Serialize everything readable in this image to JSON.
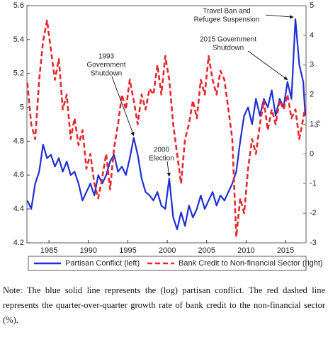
{
  "chart_data": {
    "type": "line",
    "x": [
      1982.25,
      1982.75,
      1983.25,
      1983.75,
      1984.25,
      1984.75,
      1985.25,
      1985.75,
      1986.25,
      1986.75,
      1987.25,
      1987.75,
      1988.25,
      1988.75,
      1989.25,
      1989.75,
      1990.25,
      1990.75,
      1991.25,
      1991.75,
      1992.25,
      1992.75,
      1993.25,
      1993.75,
      1994.25,
      1994.75,
      1995.25,
      1995.75,
      1996.25,
      1996.75,
      1997.25,
      1997.75,
      1998.25,
      1998.75,
      1999.25,
      1999.75,
      2000.25,
      2000.75,
      2001.25,
      2001.75,
      2002.25,
      2002.75,
      2003.25,
      2003.75,
      2004.25,
      2004.75,
      2005.25,
      2005.75,
      2006.25,
      2006.75,
      2007.25,
      2007.75,
      2008.25,
      2008.75,
      2009.25,
      2009.75,
      2010.25,
      2010.75,
      2011.25,
      2011.75,
      2012.25,
      2012.75,
      2013.25,
      2013.75,
      2014.25,
      2014.75,
      2015.25,
      2015.75,
      2016.25,
      2016.75,
      2017.25,
      2017.5
    ],
    "series": [
      {
        "name": "Partisan Conflict (left)",
        "color": "#1f2fd6",
        "dash": false,
        "values": [
          4.45,
          4.4,
          4.55,
          4.62,
          4.78,
          4.7,
          4.72,
          4.65,
          4.7,
          4.62,
          4.68,
          4.6,
          4.62,
          4.55,
          4.45,
          4.5,
          4.55,
          4.48,
          4.6,
          4.55,
          4.6,
          4.68,
          4.72,
          4.62,
          4.65,
          4.6,
          4.7,
          4.82,
          4.72,
          4.58,
          4.5,
          4.48,
          4.45,
          4.5,
          4.42,
          4.4,
          4.58,
          4.35,
          4.28,
          4.38,
          4.3,
          4.42,
          4.35,
          4.4,
          4.48,
          4.4,
          4.45,
          4.5,
          4.42,
          4.48,
          4.45,
          4.5,
          4.55,
          4.62,
          4.8,
          4.95,
          5.0,
          4.9,
          5.05,
          4.95,
          5.05,
          5.0,
          5.1,
          4.95,
          5.05,
          5.0,
          5.15,
          5.05,
          5.52,
          5.25,
          5.15,
          4.95
        ]
      },
      {
        "name": "Bank Credit to Non-financial Sector (right)",
        "color": "#e8262c",
        "dash": true,
        "axis": "y2",
        "values": [
          2.4,
          1.0,
          0.5,
          2.5,
          3.8,
          4.5,
          3.5,
          2.5,
          3.2,
          1.5,
          2.0,
          0.5,
          1.2,
          0.3,
          0.8,
          -0.5,
          0.0,
          -1.0,
          -1.5,
          -0.8,
          0.0,
          -1.2,
          0.2,
          1.0,
          2.0,
          1.5,
          2.5,
          1.8,
          1.0,
          2.0,
          1.5,
          2.2,
          2.0,
          3.0,
          2.0,
          3.3,
          2.5,
          1.0,
          0.0,
          -1.0,
          0.5,
          1.0,
          1.8,
          1.2,
          2.5,
          2.0,
          3.3,
          2.5,
          2.0,
          2.8,
          2.5,
          1.5,
          0.5,
          -2.8,
          -1.5,
          -2.0,
          -0.5,
          0.5,
          0.0,
          1.0,
          1.8,
          0.8,
          1.5,
          1.0,
          1.8,
          1.5,
          2.0,
          1.2,
          1.5,
          0.5,
          1.2,
          1.6
        ]
      }
    ],
    "xlim": [
      1982.2,
      2017.6
    ],
    "xticks": [
      1985,
      1990,
      1995,
      2000,
      2005,
      2010,
      2015
    ],
    "ylim": [
      4.2,
      5.6
    ],
    "yticks": [
      4.2,
      4.4,
      4.6,
      4.8,
      {
        "value": 5,
        "label": "5"
      },
      5.2,
      5.4,
      5.6
    ],
    "y2lim": [
      -3,
      5
    ],
    "y2ticks": [
      -3,
      -2,
      -1,
      0,
      1,
      2,
      3,
      4,
      5
    ],
    "y2label": "%",
    "y2color": "#d9531e",
    "annotations": [
      {
        "lines": [
          "1993",
          "Government",
          "Shutdown"
        ]
      },
      {
        "lines": [
          "2000",
          "Election"
        ]
      },
      {
        "lines": [
          "2015 Government",
          "Shutdown"
        ]
      },
      {
        "lines": [
          "Travel Ban and",
          "Refugee Suspension"
        ]
      }
    ]
  },
  "note": "Note: The blue solid line represents the (log) partisan conflict. The red dashed line represents the quarter-over-quarter growth rate of bank credit to the non-financial sector (%)."
}
